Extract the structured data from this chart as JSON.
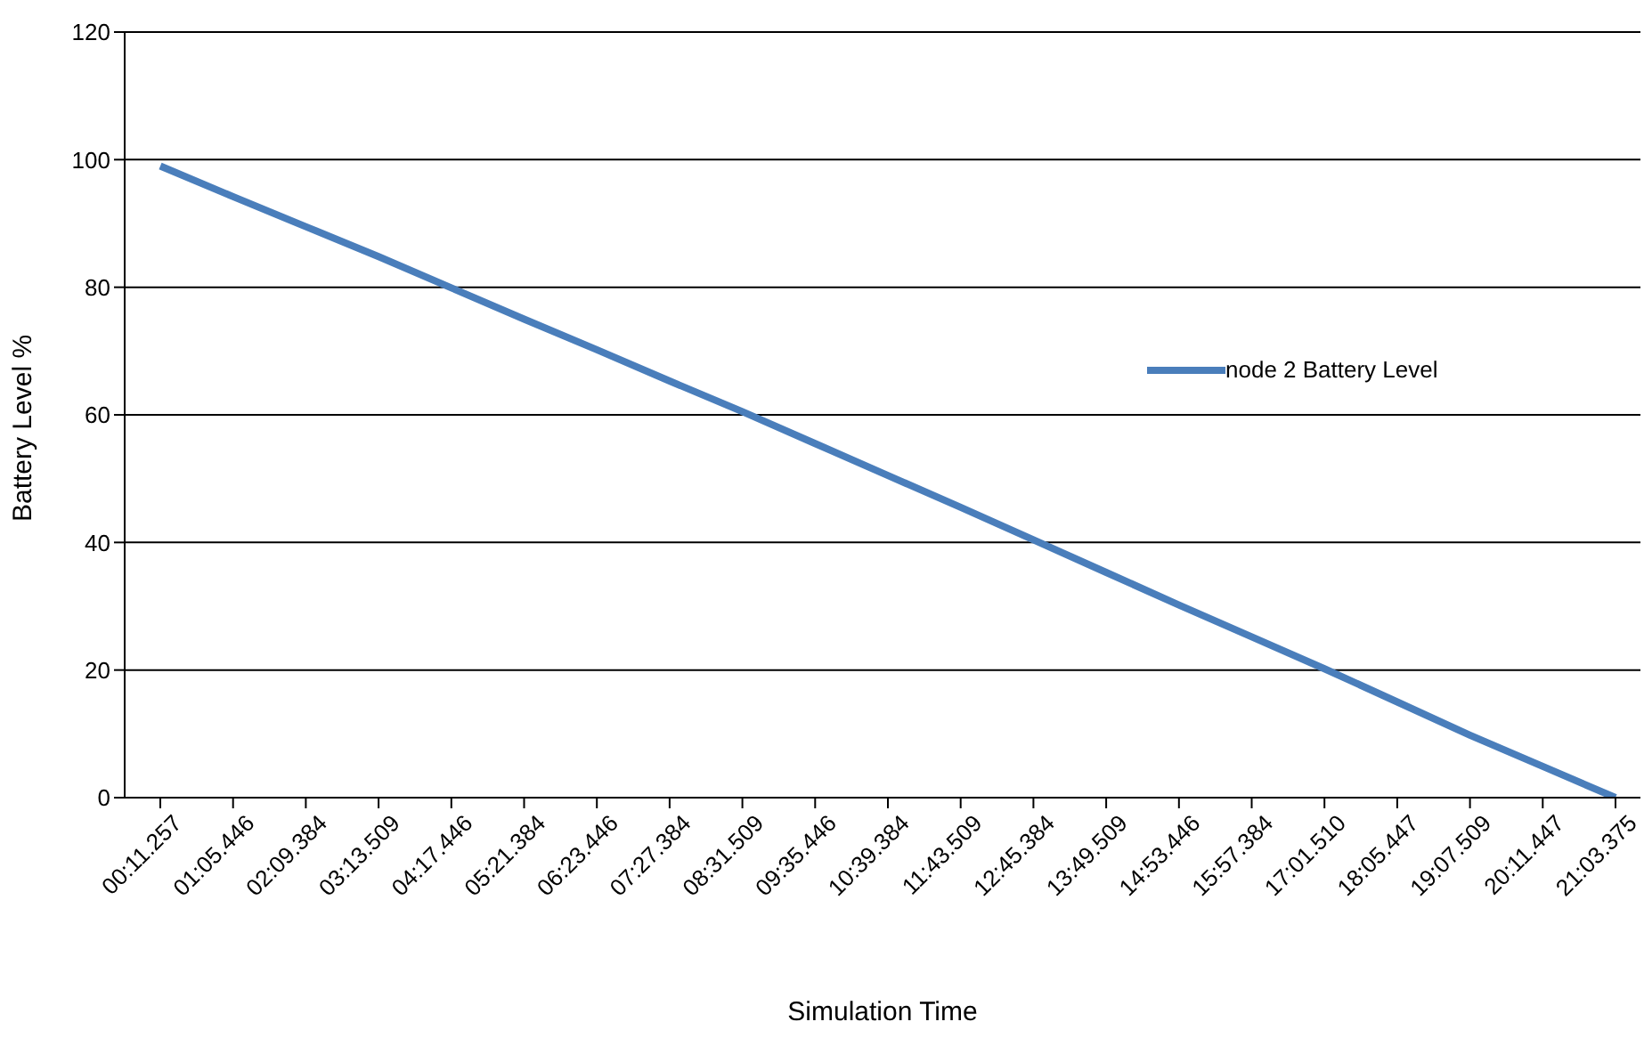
{
  "chart_data": {
    "type": "line",
    "xlabel": "Simulation Time",
    "ylabel": "Battery Level %",
    "categories": [
      "00:11.257",
      "01:05.446",
      "02:09.384",
      "03:13.509",
      "04:17.446",
      "05:21.384",
      "06:23.446",
      "07:27.384",
      "08:31.509",
      "09:35.446",
      "10:39.384",
      "11:43.509",
      "12:45.384",
      "13:49.509",
      "14:53.446",
      "15:57.384",
      "17:01.510",
      "18:05.447",
      "19:07.509",
      "20:11.447",
      "21:03.375"
    ],
    "series": [
      {
        "name": "node 2 Battery Level",
        "color": "#4a7ebb",
        "values": [
          99,
          94.2,
          89.5,
          84.8,
          79.9,
          75,
          70.2,
          65.3,
          60.5,
          55.5,
          50.5,
          45.5,
          40.4,
          35.3,
          30.2,
          25.2,
          20.2,
          15,
          9.8,
          4.9,
          0
        ]
      }
    ],
    "ylim": [
      0,
      120
    ],
    "yticks": [
      0,
      20,
      40,
      60,
      80,
      100,
      120
    ],
    "grid": "y",
    "legend": "right",
    "marker": "none",
    "line_style": "solid"
  }
}
